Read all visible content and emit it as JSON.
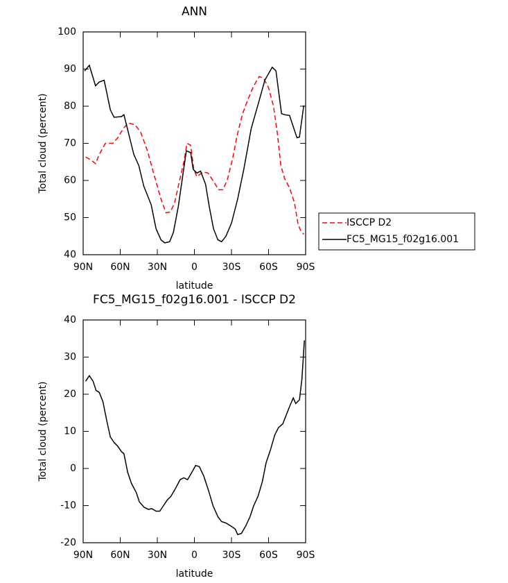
{
  "chart_data": [
    {
      "type": "line",
      "title": "ANN",
      "x_label": "latitude",
      "y_label": "Total cloud (percent)",
      "xlim": [
        90,
        -90
      ],
      "ylim": [
        40,
        100
      ],
      "xticks": [
        {
          "value": 90,
          "label": "90N"
        },
        {
          "value": 60,
          "label": "60N"
        },
        {
          "value": 30,
          "label": "30N"
        },
        0,
        {
          "value": -30,
          "label": "30S"
        },
        {
          "value": -60,
          "label": "60S"
        },
        {
          "value": -90,
          "label": "90S"
        }
      ],
      "yticks": [
        40,
        50,
        60,
        70,
        80,
        90,
        100
      ],
      "legend": "right",
      "series": [
        {
          "name": "ISCCP D2",
          "color": "#ff0000",
          "dashed": true,
          "x": [
            88,
            83.5,
            80,
            77,
            72,
            66,
            62,
            57.5,
            53.5,
            48,
            43.5,
            38,
            33,
            27,
            23,
            19.5,
            16,
            12,
            8.5,
            6,
            3,
            0.5,
            -2,
            -7,
            -11,
            -16,
            -19.5,
            -23,
            -26.5,
            -31,
            -34.5,
            -39,
            -43.5,
            -48,
            -52.5,
            -56,
            -60,
            -64,
            -67,
            -70,
            -73,
            -77,
            -81,
            -84,
            -86,
            -88.5
          ],
          "values": [
            66.3,
            65.5,
            64.5,
            67,
            70,
            70,
            71.5,
            74,
            75.5,
            75,
            73,
            68,
            62,
            55,
            51.3,
            51.5,
            54,
            60,
            65,
            70,
            69.5,
            63,
            61,
            62.3,
            62,
            59.5,
            57.5,
            57.5,
            60,
            66,
            72,
            78,
            82,
            85.5,
            88,
            87.5,
            85,
            80,
            73,
            64,
            60.5,
            58,
            54,
            48,
            46.5,
            45.5
          ]
        },
        {
          "name": "FC5_MG15_f02g16.001",
          "color": "#000000",
          "dashed": false,
          "x": [
            88.9,
            85,
            80,
            77,
            73,
            68,
            65,
            59,
            57,
            53.5,
            49,
            45,
            41,
            35,
            31,
            27,
            24,
            20,
            17,
            13,
            10,
            6.5,
            3,
            1,
            -2,
            -5,
            -9,
            -12,
            -15.5,
            -19,
            -22,
            -25.5,
            -30,
            -35,
            -40,
            -46,
            -52,
            -57,
            -63,
            -66,
            -70.5,
            -73,
            -77,
            -83,
            -85,
            -88.5
          ],
          "values": [
            89.5,
            91,
            85.5,
            86.5,
            87,
            79,
            77,
            77.2,
            77.7,
            73,
            67,
            64,
            58.5,
            53.5,
            47,
            44,
            43.2,
            43.5,
            46,
            53,
            60,
            68,
            67.5,
            63,
            62,
            62.5,
            59,
            53,
            47,
            44,
            43.5,
            45,
            48.5,
            55,
            63,
            74,
            81,
            87,
            90.5,
            89.5,
            78,
            77.7,
            77.5,
            71.5,
            71.7,
            80.2
          ]
        }
      ]
    },
    {
      "type": "line",
      "title": "FC5_MG15_f02g16.001 - ISCCP D2",
      "x_label": "latitude",
      "y_label": "Total cloud (percent)",
      "xlim": [
        90,
        -90
      ],
      "ylim": [
        -20,
        40
      ],
      "xticks": [
        {
          "value": 90,
          "label": "90N"
        },
        {
          "value": 60,
          "label": "60N"
        },
        {
          "value": 30,
          "label": "30N"
        },
        0,
        {
          "value": -30,
          "label": "30S"
        },
        {
          "value": -60,
          "label": "60S"
        },
        {
          "value": -90,
          "label": "90S"
        }
      ],
      "yticks": [
        -20,
        -10,
        0,
        10,
        20,
        30,
        40
      ],
      "color": "#000000",
      "x": [
        88,
        85,
        82,
        79.5,
        77,
        74,
        71,
        68,
        65,
        62,
        59,
        57,
        54,
        51,
        47,
        44.5,
        40.5,
        37,
        34.5,
        31,
        28,
        25,
        22,
        19,
        15.5,
        11.5,
        8.5,
        5.5,
        2,
        -1,
        -4,
        -7.5,
        -11.5,
        -15,
        -19,
        -22,
        -25.5,
        -29.5,
        -33,
        -35,
        -38,
        -41.5,
        -45,
        -48,
        -51.5,
        -55,
        -58,
        -61.5,
        -65,
        -68,
        -71.5,
        -75,
        -78,
        -80,
        -82,
        -85,
        -87,
        -89
      ],
      "values": [
        23.5,
        25,
        23.5,
        21,
        20.5,
        18,
        13,
        8.5,
        7,
        6,
        4.5,
        4,
        -1,
        -4,
        -6.5,
        -9,
        -10.5,
        -11,
        -10.8,
        -11.5,
        -11.5,
        -10,
        -8.5,
        -7.5,
        -5.5,
        -3,
        -2.5,
        -3,
        -1,
        0.8,
        0.5,
        -2,
        -6,
        -10,
        -13,
        -14.3,
        -14.7,
        -15.5,
        -16.3,
        -17.8,
        -17.5,
        -15.5,
        -13,
        -10,
        -7.5,
        -3.5,
        1.5,
        5,
        9,
        11,
        12,
        15,
        17.5,
        19,
        17.5,
        18.5,
        24,
        34.5
      ]
    }
  ]
}
